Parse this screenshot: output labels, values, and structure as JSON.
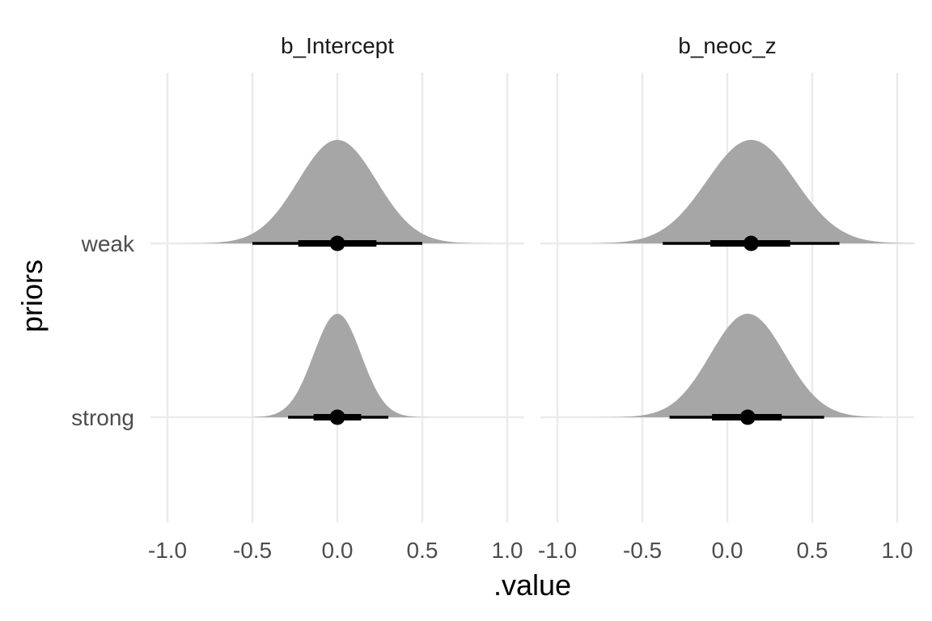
{
  "chart_data": {
    "type": "halfeye",
    "xlabel": ".value",
    "ylabel": "priors",
    "xlim": [
      -1.1,
      1.1
    ],
    "x_ticks": [
      -1.0,
      -0.5,
      0.0,
      0.5,
      1.0
    ],
    "x_tick_labels": [
      "-1.0",
      "-0.5",
      "0.0",
      "0.5",
      "1.0"
    ],
    "categories": [
      "weak",
      "strong"
    ],
    "grid": true,
    "legend": "none",
    "colors": {
      "density": "#a6a6a6",
      "interval": "#000000",
      "grid": "#ebebeb"
    },
    "facets": [
      {
        "title": "b_Intercept",
        "series": [
          {
            "category": "weak",
            "point": 0.0,
            "interval_66": [
              -0.23,
              0.23
            ],
            "interval_95": [
              -0.5,
              0.5
            ],
            "support": [
              -1.0,
              1.05
            ],
            "sd": 0.23
          },
          {
            "category": "strong",
            "point": 0.0,
            "interval_66": [
              -0.14,
              0.14
            ],
            "interval_95": [
              -0.29,
              0.3
            ],
            "support": [
              -0.5,
              0.57
            ],
            "sd": 0.14
          }
        ]
      },
      {
        "title": "b_neoc_z",
        "series": [
          {
            "category": "weak",
            "point": 0.14,
            "interval_66": [
              -0.1,
              0.37
            ],
            "interval_95": [
              -0.38,
              0.66
            ],
            "support": [
              -0.8,
              1.11
            ],
            "sd": 0.26
          },
          {
            "category": "strong",
            "point": 0.12,
            "interval_66": [
              -0.09,
              0.32
            ],
            "interval_95": [
              -0.34,
              0.57
            ],
            "support": [
              -0.8,
              0.91
            ],
            "sd": 0.22
          }
        ]
      }
    ]
  }
}
